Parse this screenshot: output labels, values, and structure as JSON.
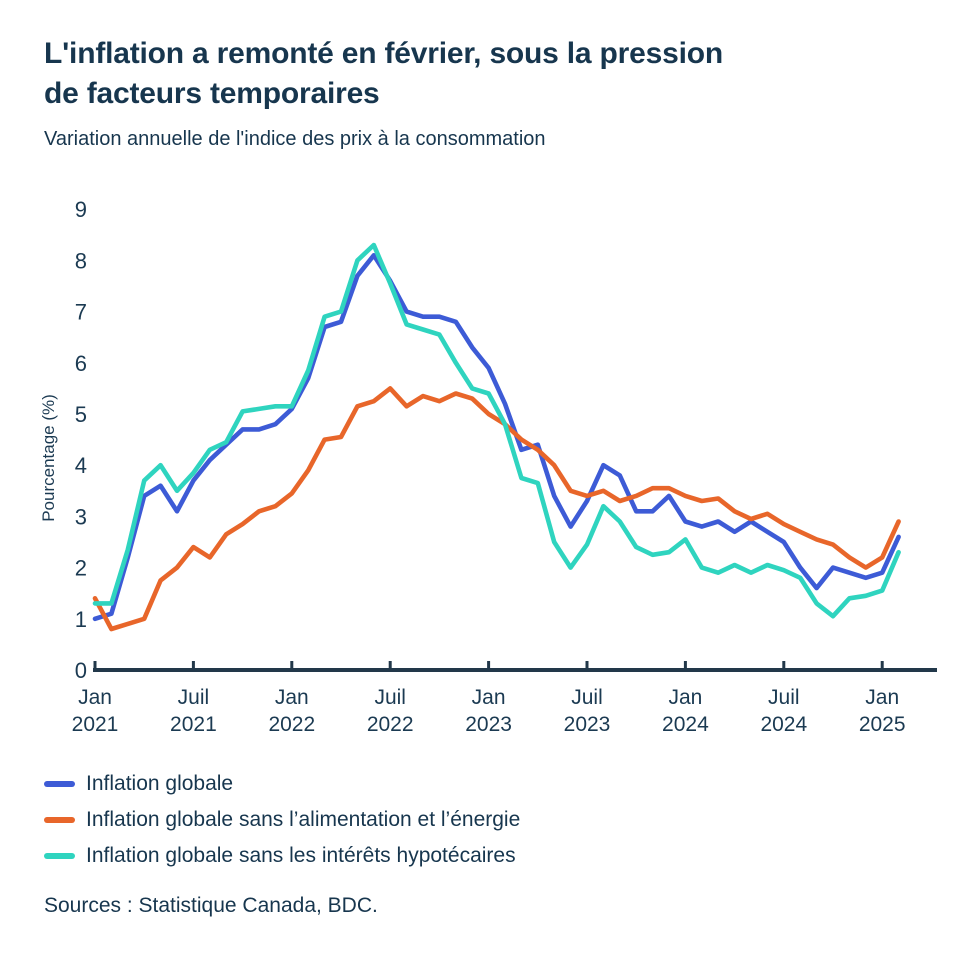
{
  "header": {
    "title_line1": "L'inflation a remonté en février, sous la pression",
    "title_line2": "de facteurs temporaires",
    "subtitle": "Variation annuelle de l'indice des prix à la consommation"
  },
  "footer": {
    "source": "Sources : Statistique Canada, BDC."
  },
  "colors": {
    "text": "#17364E",
    "axis": "#22384A",
    "background": "#FFFFFF"
  },
  "chart_data": {
    "type": "line",
    "title": "L'inflation a remonté en février, sous la pression de facteurs temporaires",
    "subtitle": "Variation annuelle de l'indice des prix à la consommation",
    "ylabel": "Pourcentage (%)",
    "xlabel": "",
    "ylim": [
      0,
      9
    ],
    "y_ticks": [
      0,
      1,
      2,
      3,
      4,
      5,
      6,
      7,
      8,
      9
    ],
    "grid": false,
    "legend_position": "bottom-left",
    "frequency": "monthly",
    "x_start": "Jan 2021",
    "x_end": "Fév 2025",
    "x_ticks": [
      {
        "at": 0,
        "month": "Jan",
        "year": "2021"
      },
      {
        "at": 6,
        "month": "Juil",
        "year": "2021"
      },
      {
        "at": 12,
        "month": "Jan",
        "year": "2022"
      },
      {
        "at": 18,
        "month": "Juil",
        "year": "2022"
      },
      {
        "at": 24,
        "month": "Jan",
        "year": "2023"
      },
      {
        "at": 30,
        "month": "Juil",
        "year": "2023"
      },
      {
        "at": 36,
        "month": "Jan",
        "year": "2024"
      },
      {
        "at": 42,
        "month": "Juil",
        "year": "2024"
      },
      {
        "at": 48,
        "month": "Jan",
        "year": "2025"
      }
    ],
    "series": [
      {
        "id": "inflation-globale",
        "name": "Inflation globale",
        "color": "#3D5BD6",
        "values": [
          1.0,
          1.1,
          2.2,
          3.4,
          3.6,
          3.1,
          3.7,
          4.1,
          4.4,
          4.7,
          4.7,
          4.8,
          5.1,
          5.7,
          6.7,
          6.8,
          7.7,
          8.1,
          7.6,
          7.0,
          6.9,
          6.9,
          6.8,
          6.3,
          5.9,
          5.2,
          4.3,
          4.4,
          3.4,
          2.8,
          3.3,
          4.0,
          3.8,
          3.1,
          3.1,
          3.4,
          2.9,
          2.8,
          2.9,
          2.7,
          2.9,
          2.7,
          2.5,
          2.0,
          1.6,
          2.0,
          1.9,
          1.8,
          1.9,
          2.6
        ]
      },
      {
        "id": "inflation-sans-alimentation-energie",
        "name": "Inflation globale sans l’alimentation et l’énergie",
        "color": "#E8662A",
        "values": [
          1.4,
          0.8,
          0.9,
          1.0,
          1.75,
          2.0,
          2.4,
          2.2,
          2.65,
          2.85,
          3.1,
          3.2,
          3.45,
          3.9,
          4.5,
          4.55,
          5.15,
          5.25,
          5.5,
          5.15,
          5.35,
          5.25,
          5.4,
          5.3,
          5.0,
          4.8,
          4.5,
          4.3,
          4.0,
          3.5,
          3.4,
          3.5,
          3.3,
          3.4,
          3.55,
          3.55,
          3.4,
          3.3,
          3.35,
          3.1,
          2.95,
          3.05,
          2.85,
          2.7,
          2.55,
          2.45,
          2.2,
          2.0,
          2.2,
          2.9
        ]
      },
      {
        "id": "inflation-sans-interets-hypotecaires",
        "name": "Inflation globale sans les intérêts hypotécaires",
        "color": "#2FD4BF",
        "values": [
          1.3,
          1.3,
          2.35,
          3.7,
          4.0,
          3.5,
          3.85,
          4.3,
          4.45,
          5.05,
          5.1,
          5.15,
          5.15,
          5.85,
          6.9,
          7.0,
          8.0,
          8.3,
          7.55,
          6.75,
          6.65,
          6.55,
          6.0,
          5.5,
          5.4,
          4.8,
          3.75,
          3.65,
          2.5,
          2.0,
          2.45,
          3.2,
          2.9,
          2.4,
          2.25,
          2.3,
          2.55,
          2.0,
          1.9,
          2.05,
          1.9,
          2.05,
          1.95,
          1.8,
          1.3,
          1.05,
          1.4,
          1.45,
          1.55,
          2.3
        ]
      }
    ]
  }
}
